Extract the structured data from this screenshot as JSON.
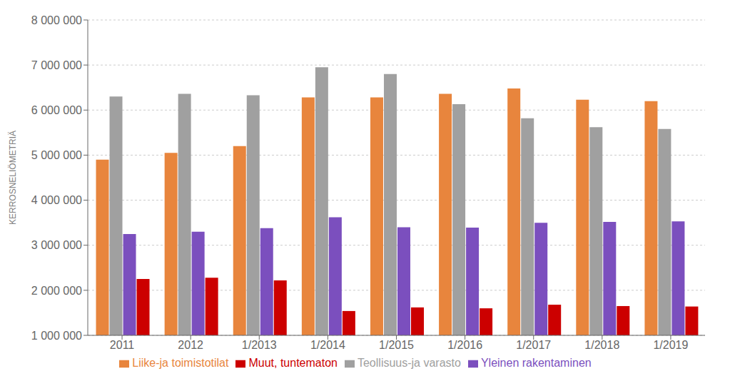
{
  "chart_data": {
    "type": "bar",
    "categories": [
      "2011",
      "2012",
      "1/2013",
      "1/2014",
      "1/2015",
      "1/2016",
      "1/2017",
      "1/2018",
      "1/2019"
    ],
    "series": [
      {
        "name": "Liike-ja toimistotilat",
        "color": "#E8853D",
        "values": [
          4900000,
          5050000,
          5200000,
          6280000,
          6280000,
          6360000,
          6480000,
          6230000,
          6200000
        ]
      },
      {
        "name": "Teollisuus-ja varasto",
        "color": "#A0A0A0",
        "values": [
          6300000,
          6360000,
          6330000,
          6950000,
          6800000,
          6130000,
          5820000,
          5620000,
          5580000
        ]
      },
      {
        "name": "Yleinen rakentaminen",
        "color": "#7B4FBE",
        "values": [
          3250000,
          3300000,
          3380000,
          3620000,
          3400000,
          3390000,
          3500000,
          3520000,
          3530000
        ]
      },
      {
        "name": "Muut, tuntematon",
        "color": "#CC0000",
        "values": [
          2250000,
          2280000,
          2220000,
          1540000,
          1620000,
          1600000,
          1680000,
          1650000,
          1640000
        ]
      }
    ],
    "ylabel": "KERROSNELIÖMETRIÄ",
    "ylim": [
      1000000,
      8000000
    ],
    "yticks": [
      {
        "value": 1000000,
        "label": "1 000 000"
      },
      {
        "value": 2000000,
        "label": "2 000 000"
      },
      {
        "value": 3000000,
        "label": "3 000 000"
      },
      {
        "value": 4000000,
        "label": "4 000 000"
      },
      {
        "value": 5000000,
        "label": "5 000 000"
      },
      {
        "value": 6000000,
        "label": "6 000 000"
      },
      {
        "value": 7000000,
        "label": "7 000 000"
      },
      {
        "value": 8000000,
        "label": "8 000 000"
      }
    ],
    "grid": true,
    "legend": "bottom"
  }
}
